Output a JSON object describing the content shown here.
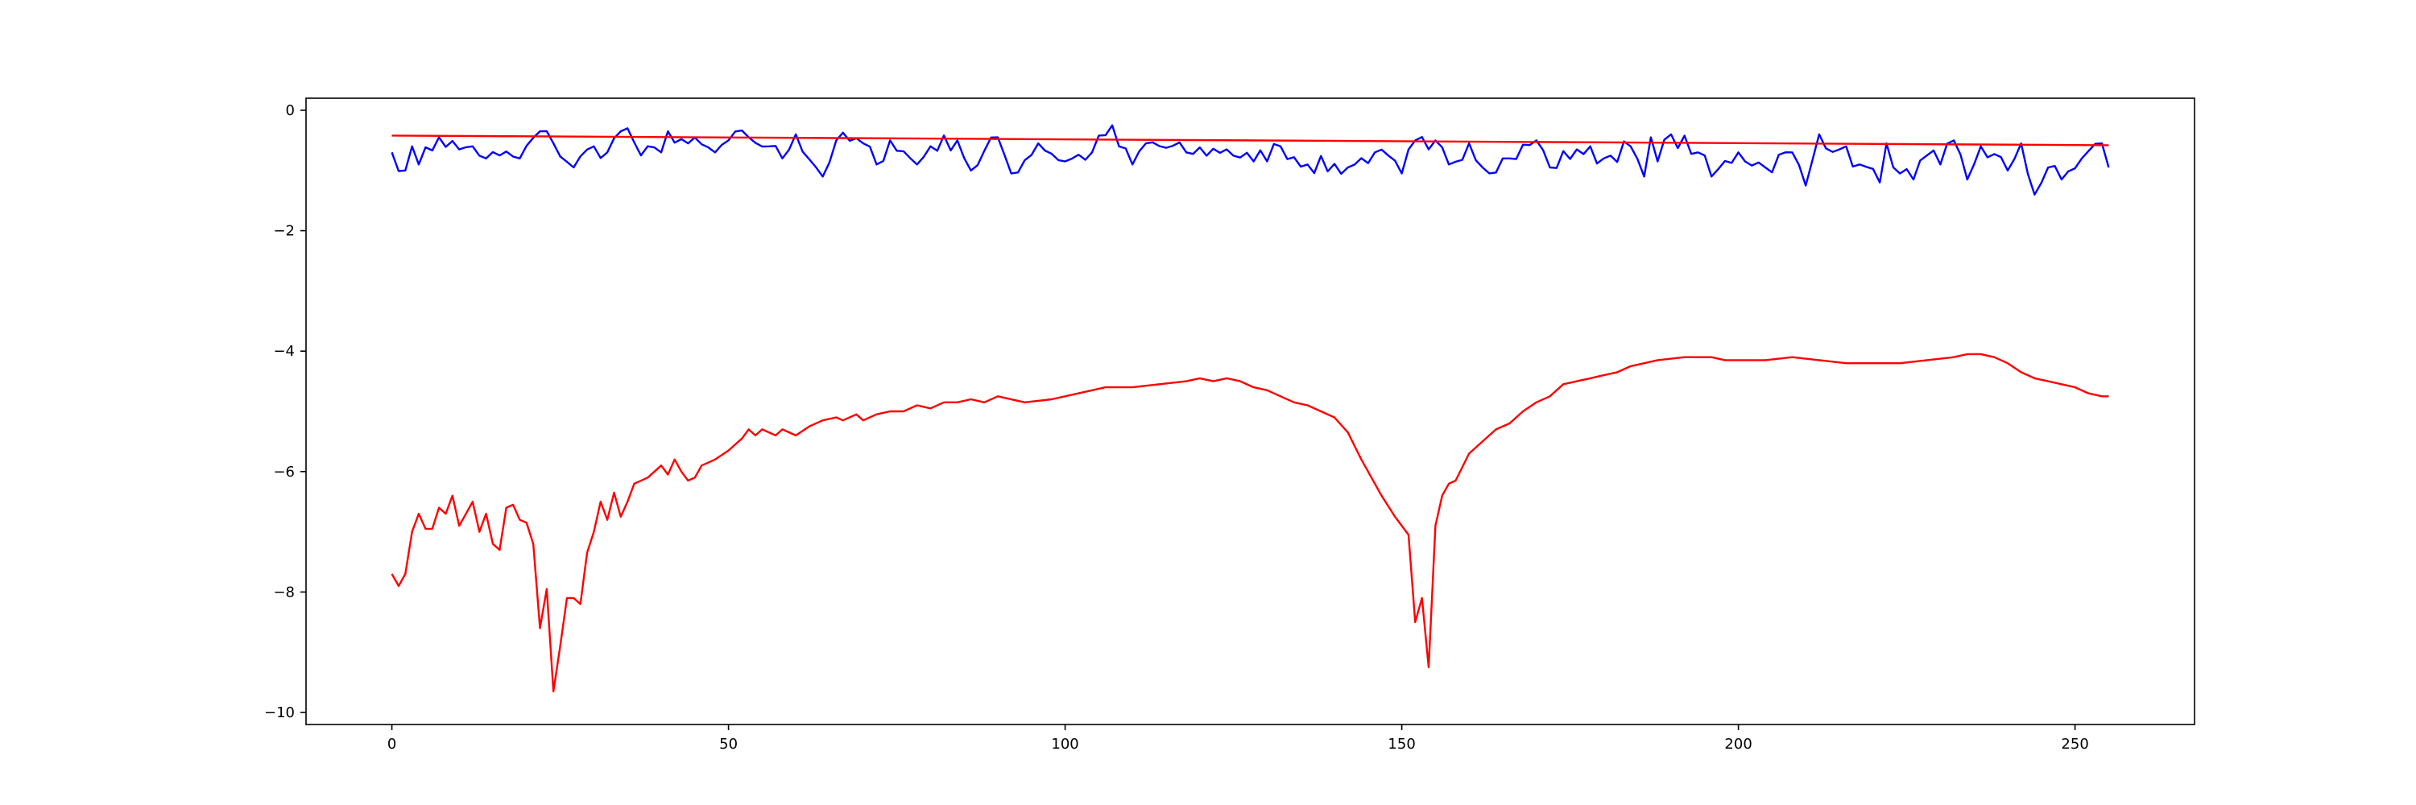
{
  "chart_data": {
    "type": "line",
    "title": "",
    "xlabel": "",
    "ylabel": "",
    "xlim": [
      -12.75,
      267.75
    ],
    "ylim": [
      -10.2,
      0.2
    ],
    "xticks": [
      0,
      50,
      100,
      150,
      200,
      250
    ],
    "yticks": [
      0,
      -2,
      -4,
      -6,
      -8,
      -10
    ],
    "grid": false,
    "legend": null,
    "series": [
      {
        "color": "#0000ff",
        "kind": "noisy",
        "x_start": 0,
        "x_end": 255,
        "key_values": [
          [
            0,
            -0.7
          ],
          [
            2,
            -1.0
          ],
          [
            3,
            -0.6
          ],
          [
            4,
            -0.9
          ],
          [
            7,
            -0.45
          ],
          [
            10,
            -0.65
          ],
          [
            12,
            -0.6
          ],
          [
            14,
            -0.8
          ],
          [
            16,
            -0.75
          ],
          [
            19,
            -0.8
          ],
          [
            22,
            -0.35
          ],
          [
            24,
            -0.55
          ],
          [
            27,
            -0.95
          ],
          [
            30,
            -0.6
          ],
          [
            32,
            -0.7
          ],
          [
            34,
            -0.35
          ],
          [
            35,
            -0.3
          ],
          [
            37,
            -0.75
          ],
          [
            40,
            -0.7
          ],
          [
            41,
            -0.35
          ],
          [
            44,
            -0.55
          ],
          [
            48,
            -0.7
          ],
          [
            50,
            -0.5
          ],
          [
            53,
            -0.45
          ],
          [
            56,
            -0.6
          ],
          [
            58,
            -0.8
          ],
          [
            60,
            -0.4
          ],
          [
            64,
            -1.1
          ],
          [
            66,
            -0.5
          ],
          [
            70,
            -0.55
          ],
          [
            72,
            -0.9
          ],
          [
            74,
            -0.5
          ],
          [
            78,
            -0.9
          ],
          [
            80,
            -0.6
          ],
          [
            84,
            -0.5
          ],
          [
            86,
            -1.0
          ],
          [
            90,
            -0.45
          ],
          [
            92,
            -1.05
          ],
          [
            96,
            -0.55
          ],
          [
            100,
            -0.85
          ],
          [
            104,
            -0.7
          ],
          [
            107,
            -0.25
          ],
          [
            108,
            -0.6
          ],
          [
            110,
            -0.9
          ],
          [
            112,
            -0.55
          ],
          [
            118,
            -0.7
          ],
          [
            124,
            -0.65
          ],
          [
            128,
            -0.85
          ],
          [
            132,
            -0.6
          ],
          [
            136,
            -0.9
          ],
          [
            142,
            -0.95
          ],
          [
            146,
            -0.7
          ],
          [
            150,
            -1.05
          ],
          [
            152,
            -0.5
          ],
          [
            154,
            -0.65
          ],
          [
            155,
            -0.5
          ],
          [
            157,
            -0.9
          ],
          [
            160,
            -0.55
          ],
          [
            162,
            -0.95
          ],
          [
            166,
            -0.8
          ],
          [
            170,
            -0.5
          ],
          [
            172,
            -0.95
          ],
          [
            176,
            -0.65
          ],
          [
            180,
            -0.8
          ],
          [
            184,
            -0.6
          ],
          [
            186,
            -1.1
          ],
          [
            187,
            -0.45
          ],
          [
            188,
            -0.85
          ],
          [
            190,
            -0.4
          ],
          [
            194,
            -0.7
          ],
          [
            196,
            -1.1
          ],
          [
            200,
            -0.7
          ],
          [
            204,
            -0.95
          ],
          [
            208,
            -0.7
          ],
          [
            210,
            -1.25
          ],
          [
            212,
            -0.4
          ],
          [
            215,
            -0.65
          ],
          [
            218,
            -0.9
          ],
          [
            221,
            -1.2
          ],
          [
            222,
            -0.55
          ],
          [
            224,
            -1.05
          ],
          [
            226,
            -1.15
          ],
          [
            228,
            -0.75
          ],
          [
            230,
            -0.9
          ],
          [
            232,
            -0.5
          ],
          [
            234,
            -1.15
          ],
          [
            236,
            -0.6
          ],
          [
            240,
            -1.0
          ],
          [
            242,
            -0.55
          ],
          [
            244,
            -1.4
          ],
          [
            246,
            -0.95
          ],
          [
            248,
            -1.15
          ],
          [
            251,
            -0.8
          ],
          [
            254,
            -0.55
          ],
          [
            255,
            -0.95
          ]
        ]
      },
      {
        "color": "#ff0000",
        "kind": "trend",
        "points": [
          [
            0,
            -0.42
          ],
          [
            255,
            -0.58
          ]
        ]
      },
      {
        "color": "#ff0000",
        "kind": "smooth",
        "points": [
          [
            0,
            -7.7
          ],
          [
            1,
            -7.9
          ],
          [
            2,
            -7.7
          ],
          [
            3,
            -7.0
          ],
          [
            4,
            -6.7
          ],
          [
            5,
            -6.95
          ],
          [
            6,
            -6.95
          ],
          [
            7,
            -6.6
          ],
          [
            8,
            -6.7
          ],
          [
            9,
            -6.4
          ],
          [
            10,
            -6.9
          ],
          [
            11,
            -6.7
          ],
          [
            12,
            -6.5
          ],
          [
            13,
            -7.0
          ],
          [
            14,
            -6.7
          ],
          [
            15,
            -7.2
          ],
          [
            16,
            -7.3
          ],
          [
            17,
            -6.6
          ],
          [
            18,
            -6.55
          ],
          [
            19,
            -6.8
          ],
          [
            20,
            -6.85
          ],
          [
            21,
            -7.2
          ],
          [
            22,
            -8.6
          ],
          [
            23,
            -7.95
          ],
          [
            24,
            -9.65
          ],
          [
            25,
            -8.9
          ],
          [
            26,
            -8.1
          ],
          [
            27,
            -8.1
          ],
          [
            28,
            -8.2
          ],
          [
            29,
            -7.35
          ],
          [
            30,
            -7.0
          ],
          [
            31,
            -6.5
          ],
          [
            32,
            -6.8
          ],
          [
            33,
            -6.35
          ],
          [
            34,
            -6.75
          ],
          [
            35,
            -6.5
          ],
          [
            36,
            -6.2
          ],
          [
            38,
            -6.1
          ],
          [
            40,
            -5.9
          ],
          [
            41,
            -6.05
          ],
          [
            42,
            -5.8
          ],
          [
            43,
            -6.0
          ],
          [
            44,
            -6.15
          ],
          [
            45,
            -6.1
          ],
          [
            46,
            -5.9
          ],
          [
            48,
            -5.8
          ],
          [
            50,
            -5.65
          ],
          [
            52,
            -5.45
          ],
          [
            53,
            -5.3
          ],
          [
            54,
            -5.4
          ],
          [
            55,
            -5.3
          ],
          [
            57,
            -5.4
          ],
          [
            58,
            -5.3
          ],
          [
            60,
            -5.4
          ],
          [
            62,
            -5.25
          ],
          [
            64,
            -5.15
          ],
          [
            66,
            -5.1
          ],
          [
            67,
            -5.15
          ],
          [
            69,
            -5.05
          ],
          [
            70,
            -5.15
          ],
          [
            72,
            -5.05
          ],
          [
            74,
            -5.0
          ],
          [
            76,
            -5.0
          ],
          [
            78,
            -4.9
          ],
          [
            80,
            -4.95
          ],
          [
            82,
            -4.85
          ],
          [
            84,
            -4.85
          ],
          [
            86,
            -4.8
          ],
          [
            88,
            -4.85
          ],
          [
            90,
            -4.75
          ],
          [
            94,
            -4.85
          ],
          [
            98,
            -4.8
          ],
          [
            102,
            -4.7
          ],
          [
            106,
            -4.6
          ],
          [
            110,
            -4.6
          ],
          [
            114,
            -4.55
          ],
          [
            118,
            -4.5
          ],
          [
            120,
            -4.45
          ],
          [
            122,
            -4.5
          ],
          [
            124,
            -4.45
          ],
          [
            126,
            -4.5
          ],
          [
            128,
            -4.6
          ],
          [
            130,
            -4.65
          ],
          [
            132,
            -4.75
          ],
          [
            134,
            -4.85
          ],
          [
            136,
            -4.9
          ],
          [
            138,
            -5.0
          ],
          [
            140,
            -5.1
          ],
          [
            142,
            -5.35
          ],
          [
            144,
            -5.8
          ],
          [
            145,
            -6.0
          ],
          [
            147,
            -6.4
          ],
          [
            149,
            -6.75
          ],
          [
            151,
            -7.05
          ],
          [
            152,
            -8.5
          ],
          [
            153,
            -8.1
          ],
          [
            154,
            -9.25
          ],
          [
            155,
            -6.9
          ],
          [
            156,
            -6.4
          ],
          [
            157,
            -6.2
          ],
          [
            158,
            -6.15
          ],
          [
            160,
            -5.7
          ],
          [
            162,
            -5.5
          ],
          [
            164,
            -5.3
          ],
          [
            166,
            -5.2
          ],
          [
            168,
            -5.0
          ],
          [
            170,
            -4.85
          ],
          [
            172,
            -4.75
          ],
          [
            174,
            -4.55
          ],
          [
            176,
            -4.5
          ],
          [
            178,
            -4.45
          ],
          [
            180,
            -4.4
          ],
          [
            182,
            -4.35
          ],
          [
            184,
            -4.25
          ],
          [
            186,
            -4.2
          ],
          [
            188,
            -4.15
          ],
          [
            192,
            -4.1
          ],
          [
            196,
            -4.1
          ],
          [
            198,
            -4.15
          ],
          [
            200,
            -4.15
          ],
          [
            204,
            -4.15
          ],
          [
            208,
            -4.1
          ],
          [
            212,
            -4.15
          ],
          [
            216,
            -4.2
          ],
          [
            220,
            -4.2
          ],
          [
            224,
            -4.2
          ],
          [
            228,
            -4.15
          ],
          [
            232,
            -4.1
          ],
          [
            234,
            -4.05
          ],
          [
            236,
            -4.05
          ],
          [
            238,
            -4.1
          ],
          [
            240,
            -4.2
          ],
          [
            242,
            -4.35
          ],
          [
            244,
            -4.45
          ],
          [
            246,
            -4.5
          ],
          [
            248,
            -4.55
          ],
          [
            250,
            -4.6
          ],
          [
            252,
            -4.7
          ],
          [
            254,
            -4.75
          ],
          [
            255,
            -4.75
          ]
        ]
      }
    ]
  }
}
